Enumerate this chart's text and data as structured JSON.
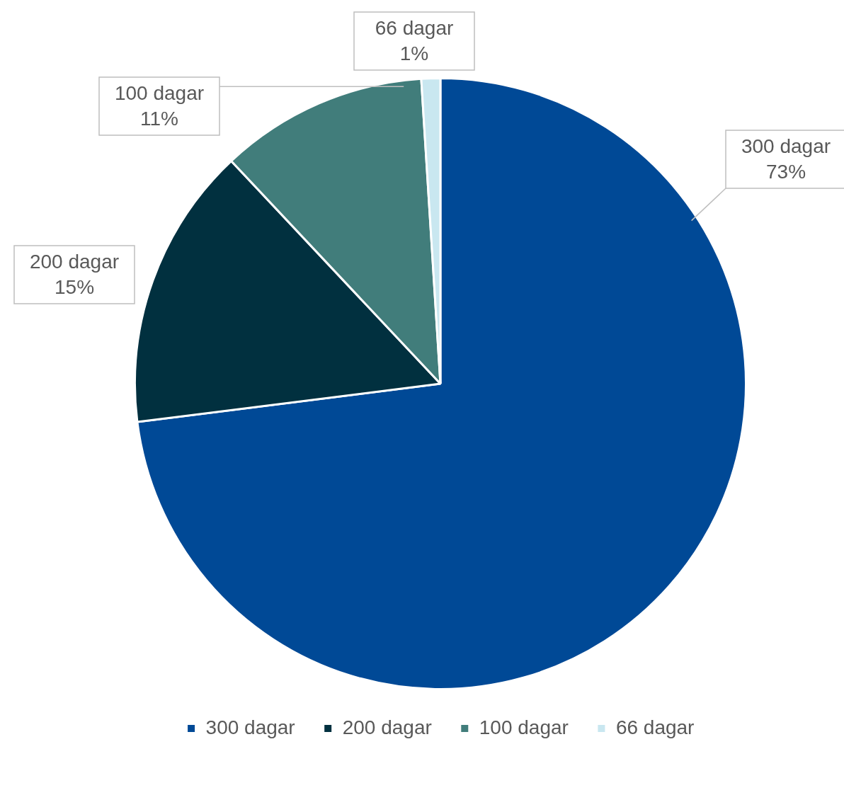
{
  "chart_data": {
    "type": "pie",
    "categories": [
      "300 dagar",
      "200 dagar",
      "100 dagar",
      "66 dagar"
    ],
    "values": [
      73,
      15,
      11,
      1
    ],
    "value_labels": [
      "73%",
      "15%",
      "11%",
      "1%"
    ],
    "colors": [
      "#004996",
      "#01303f",
      "#417d7b",
      "#c9e7f0"
    ],
    "legend": "bottom"
  }
}
